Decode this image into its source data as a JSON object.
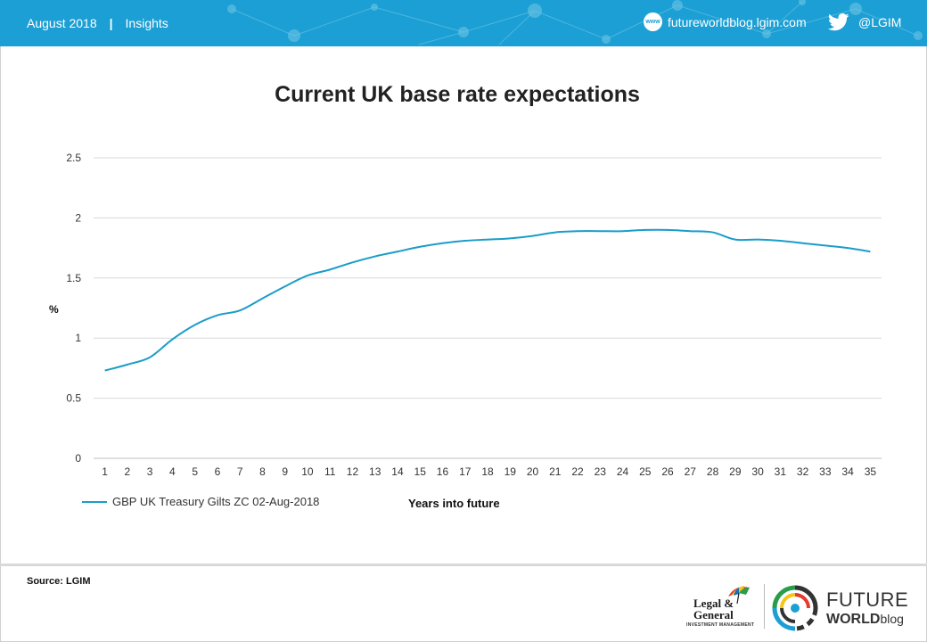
{
  "header": {
    "date": "August 2018",
    "separator": "|",
    "section": "Insights",
    "www_badge": "www",
    "website": "futureworldblog.lgim.com",
    "twitter": "@LGIM",
    "bg_color": "#1c9fd4"
  },
  "chart_data": {
    "type": "line",
    "title": "Current UK base rate expectations",
    "xlabel": "Years into future",
    "ylabel": "%",
    "categories": [
      "1",
      "2",
      "3",
      "4",
      "5",
      "6",
      "7",
      "8",
      "9",
      "10",
      "11",
      "12",
      "13",
      "14",
      "15",
      "16",
      "17",
      "18",
      "19",
      "20",
      "21",
      "22",
      "23",
      "24",
      "25",
      "26",
      "27",
      "28",
      "29",
      "30",
      "31",
      "32",
      "33",
      "34",
      "35"
    ],
    "ylim": [
      0,
      2.5
    ],
    "yticks": [
      "0",
      "0.5",
      "1",
      "1.5",
      "2",
      "2.5"
    ],
    "grid": true,
    "legend_position": "bottom-left",
    "series": [
      {
        "name": "GBP UK Treasury Gilts ZC 02-Aug-2018",
        "color": "#1a9dc9",
        "values": [
          0.73,
          0.78,
          0.84,
          0.99,
          1.11,
          1.19,
          1.23,
          1.33,
          1.43,
          1.52,
          1.57,
          1.63,
          1.68,
          1.72,
          1.76,
          1.79,
          1.81,
          1.82,
          1.83,
          1.85,
          1.88,
          1.89,
          1.89,
          1.89,
          1.9,
          1.9,
          1.89,
          1.88,
          1.82,
          1.82,
          1.81,
          1.79,
          1.77,
          1.75,
          1.72
        ]
      }
    ]
  },
  "footer": {
    "source": "Source: LGIM",
    "lg_line1": "Legal &",
    "lg_line2": "General",
    "lg_sub": "INVESTMENT MANAGEMENT",
    "fw_line1": "FUTURE",
    "fw_line2a": "WORLD",
    "fw_line2b": "blog"
  }
}
